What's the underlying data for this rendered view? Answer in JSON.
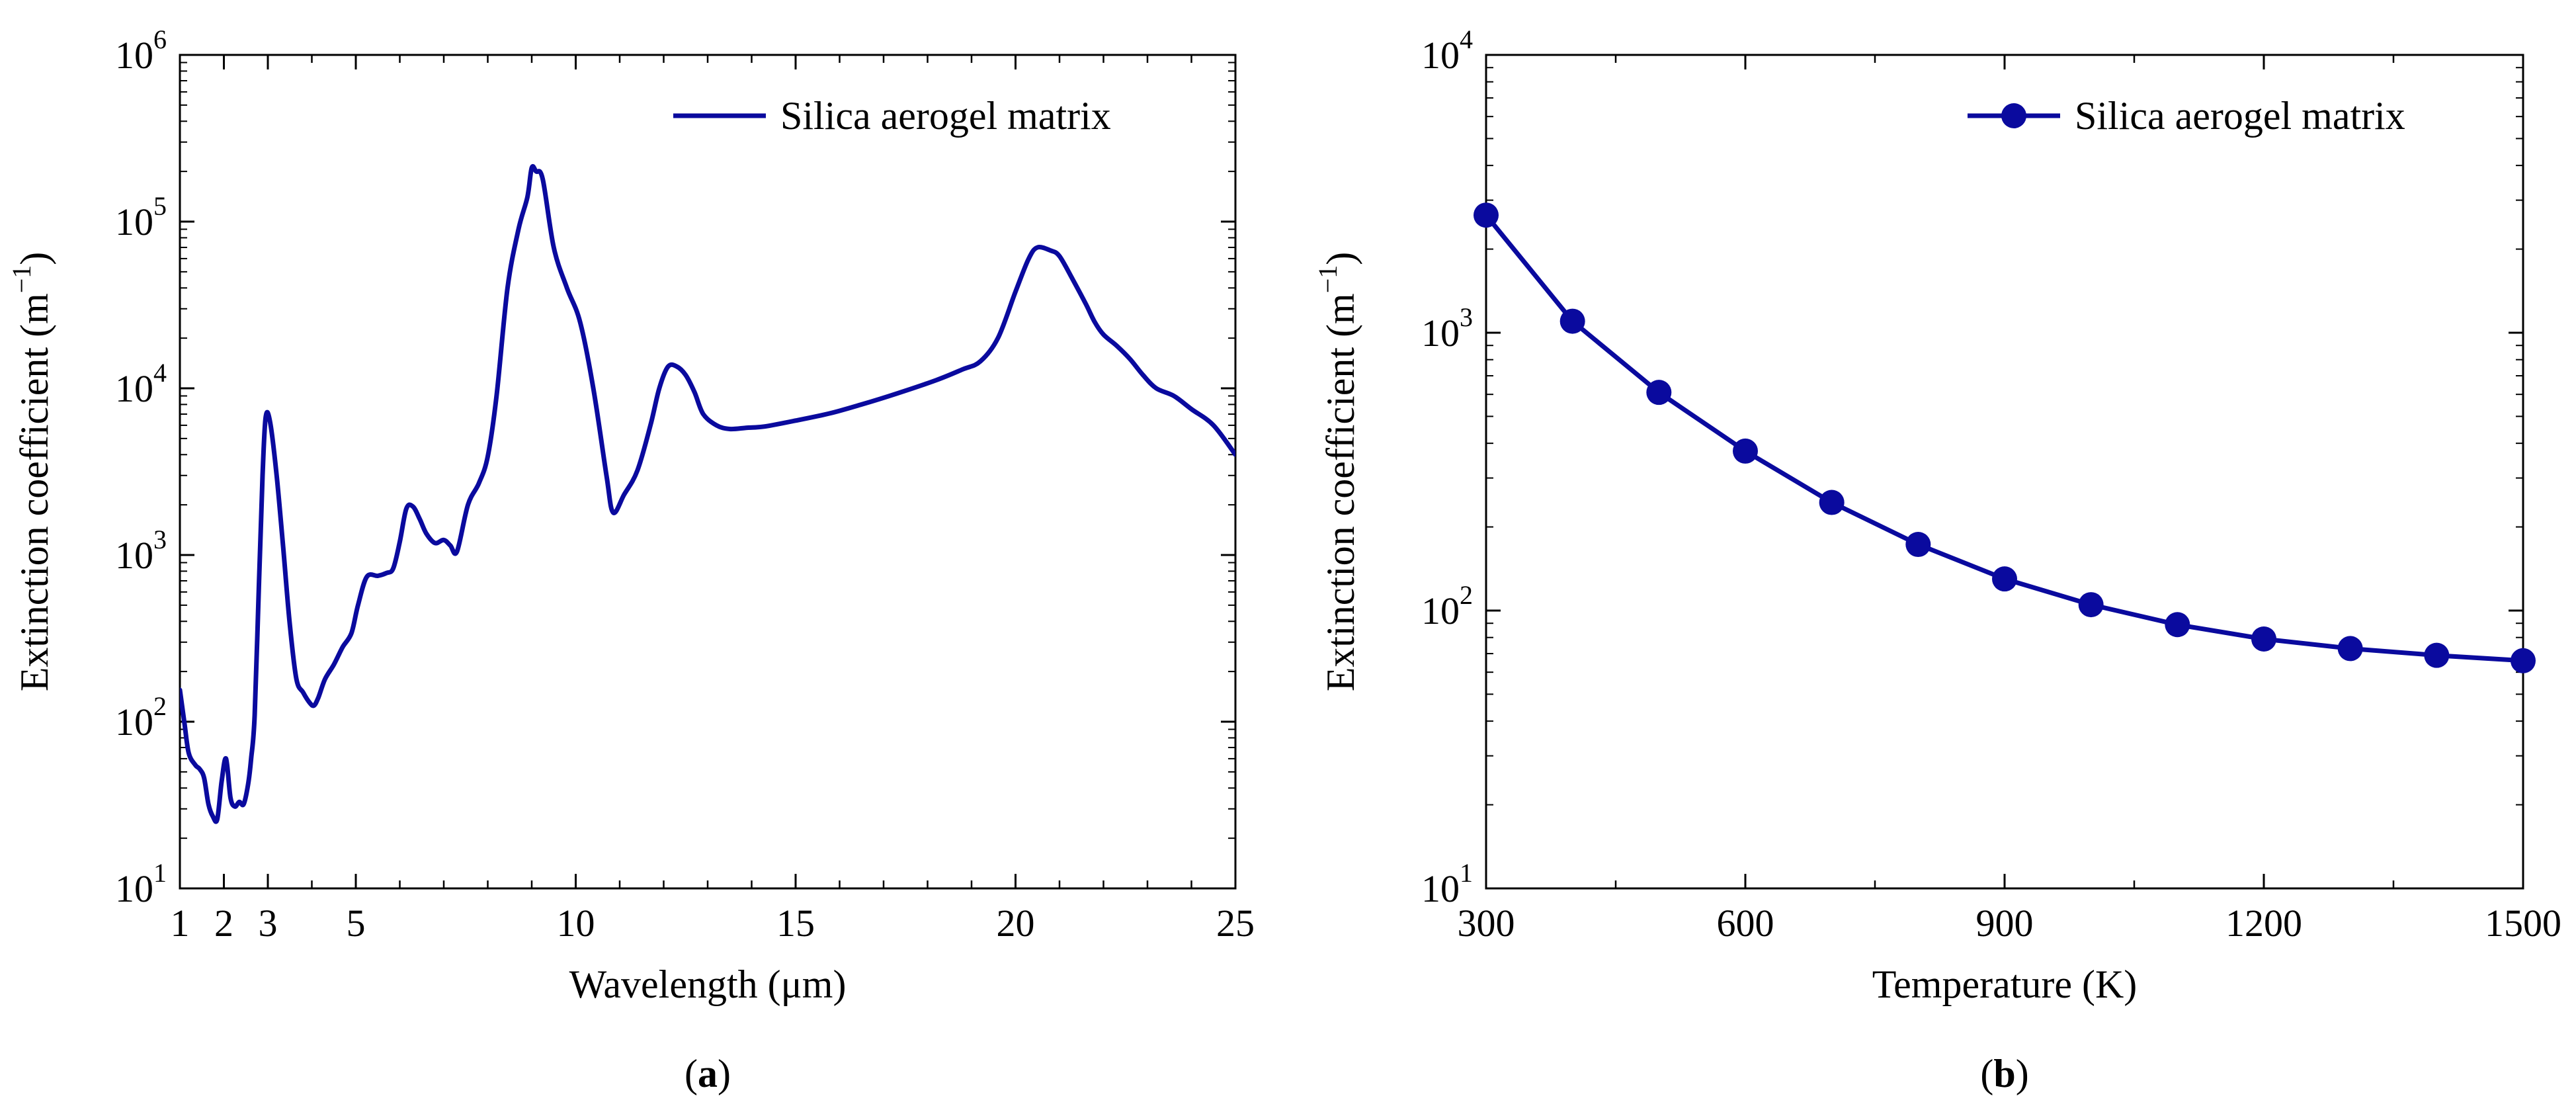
{
  "colors": {
    "series": "#0a0a9e",
    "axis": "#000000"
  },
  "chart_data": [
    {
      "type": "line",
      "caption_open": "(",
      "caption_letter": "a",
      "caption_close": ")",
      "xlabel": "Wavelength (μm)",
      "ylabel": "Extinction coefficient (m",
      "ylabel_sup": "−1",
      "ylabel_close": ")",
      "xlim": [
        1,
        25
      ],
      "ylim_log10": [
        1,
        6
      ],
      "xticks": [
        1,
        2,
        3,
        5,
        10,
        15,
        20,
        25
      ],
      "xtick_labels": [
        "1",
        "2",
        "3",
        "5",
        "10",
        "15",
        "20",
        "25"
      ],
      "yticks": [
        {
          "base": "10",
          "exp": "1"
        },
        {
          "base": "10",
          "exp": "2"
        },
        {
          "base": "10",
          "exp": "3"
        },
        {
          "base": "10",
          "exp": "4"
        },
        {
          "base": "10",
          "exp": "5"
        },
        {
          "base": "10",
          "exp": "6"
        }
      ],
      "legend": {
        "label": "Silica aerogel matrix",
        "position": "top-right",
        "marker": "line"
      },
      "series": [
        {
          "name": "Silica aerogel matrix",
          "x": [
            1.0,
            1.1,
            1.2,
            1.35,
            1.45,
            1.55,
            1.65,
            1.75,
            1.85,
            1.95,
            2.05,
            2.15,
            2.25,
            2.35,
            2.45,
            2.55,
            2.62,
            2.7,
            2.8,
            2.88,
            2.95,
            3.05,
            3.2,
            3.35,
            3.5,
            3.65,
            3.8,
            3.95,
            4.05,
            4.15,
            4.3,
            4.5,
            4.7,
            4.9,
            5.05,
            5.25,
            5.5,
            5.7,
            5.85,
            6.0,
            6.15,
            6.3,
            6.45,
            6.6,
            6.8,
            7.0,
            7.15,
            7.3,
            7.55,
            7.8,
            8.0,
            8.2,
            8.45,
            8.7,
            8.9,
            9.0,
            9.1,
            9.25,
            9.5,
            9.8,
            10.1,
            10.4,
            10.7,
            10.85,
            11.1,
            11.4,
            11.7,
            11.9,
            12.1,
            12.3,
            12.5,
            12.7,
            12.9,
            13.2,
            13.5,
            13.9,
            14.3,
            15.0,
            15.8,
            16.5,
            17.3,
            18.2,
            18.8,
            19.2,
            19.6,
            20.0,
            20.3,
            20.5,
            20.8,
            21.0,
            21.3,
            21.6,
            21.8,
            22.0,
            22.3,
            22.6,
            22.9,
            23.2,
            23.6,
            24.0,
            24.5,
            25.0
          ],
          "y": [
            155,
            100,
            65,
            55,
            52,
            46,
            32,
            27,
            26,
            44,
            60,
            35,
            31,
            33,
            32,
            42,
            60,
            110,
            700,
            3000,
            6700,
            6300,
            3000,
            1100,
            380,
            180,
            150,
            130,
            125,
            140,
            180,
            220,
            280,
            340,
            500,
            740,
            750,
            780,
            830,
            1200,
            1900,
            1950,
            1650,
            1350,
            1180,
            1230,
            1140,
            1050,
            2000,
            2700,
            3900,
            9000,
            40000,
            90000,
            140000,
            210000,
            200000,
            180000,
            70000,
            40000,
            25000,
            10000,
            3000,
            1800,
            2300,
            3200,
            6000,
            10000,
            13500,
            13500,
            12000,
            9500,
            7000,
            6000,
            5700,
            5800,
            5900,
            6400,
            7100,
            8000,
            9300,
            11200,
            13000,
            14500,
            20000,
            38000,
            60000,
            70000,
            67000,
            62000,
            45000,
            32000,
            25000,
            21000,
            18000,
            15000,
            12000,
            10000,
            9000,
            7500,
            6000,
            4000
          ]
        }
      ]
    },
    {
      "type": "line",
      "caption_open": "(",
      "caption_letter": "b",
      "caption_close": ")",
      "xlabel": "Temperature (K)",
      "ylabel": "Extinction coefficient (m",
      "ylabel_sup": "−1",
      "ylabel_close": ")",
      "xlim": [
        300,
        1500
      ],
      "ylim_log10": [
        1,
        4
      ],
      "xticks": [
        300,
        600,
        900,
        1200,
        1500
      ],
      "xtick_labels": [
        "300",
        "600",
        "900",
        "1200",
        "1500"
      ],
      "yticks": [
        {
          "base": "10",
          "exp": "1"
        },
        {
          "base": "10",
          "exp": "2"
        },
        {
          "base": "10",
          "exp": "3"
        },
        {
          "base": "10",
          "exp": "4"
        }
      ],
      "legend": {
        "label": "Silica aerogel matrix",
        "position": "top-right",
        "marker": "line-with-circle"
      },
      "series": [
        {
          "name": "Silica aerogel matrix",
          "x": [
            300,
            400,
            500,
            600,
            700,
            800,
            900,
            1000,
            1100,
            1200,
            1300,
            1400,
            1500
          ],
          "y": [
            2650,
            1100,
            610,
            375,
            245,
            173,
            130,
            105,
            89,
            79,
            73,
            69,
            66
          ]
        }
      ]
    }
  ]
}
